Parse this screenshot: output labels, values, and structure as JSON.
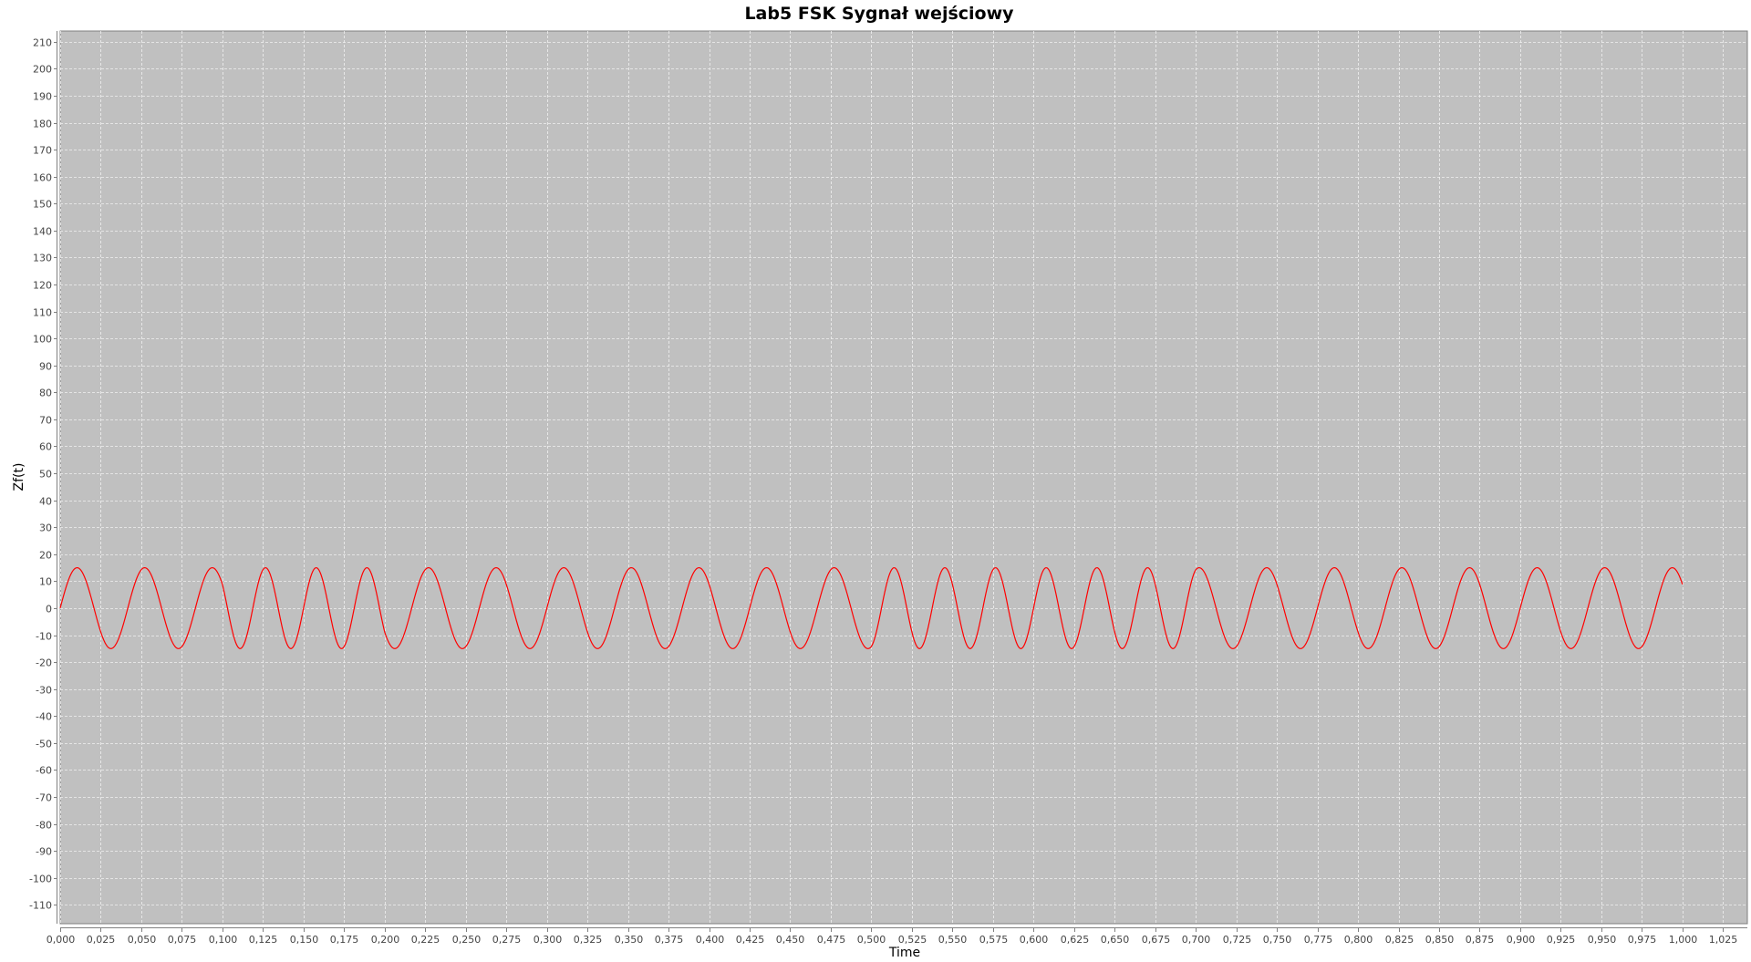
{
  "chart_data": {
    "type": "line",
    "title": "Lab5 FSK Sygnał wejściowy",
    "xlabel": "Time",
    "ylabel": "Zf(t)",
    "xlim": [
      0,
      1.04
    ],
    "ylim": [
      -117,
      214
    ],
    "xticks": [
      "0,000",
      "0,025",
      "0,050",
      "0,075",
      "0,100",
      "0,125",
      "0,150",
      "0,175",
      "0,200",
      "0,225",
      "0,250",
      "0,275",
      "0,300",
      "0,325",
      "0,350",
      "0,375",
      "0,400",
      "0,425",
      "0,450",
      "0,475",
      "0,500",
      "0,525",
      "0,550",
      "0,575",
      "0,600",
      "0,625",
      "0,650",
      "0,675",
      "0,700",
      "0,725",
      "0,750",
      "0,775",
      "0,800",
      "0,825",
      "0,850",
      "0,875",
      "0,900",
      "0,925",
      "0,950",
      "0,975",
      "1,000",
      "1,025"
    ],
    "yticks": [
      "210",
      "200",
      "190",
      "180",
      "170",
      "160",
      "150",
      "140",
      "130",
      "120",
      "110",
      "100",
      "90",
      "80",
      "70",
      "60",
      "50",
      "40",
      "30",
      "20",
      "10",
      "0",
      "-10",
      "-20",
      "-30",
      "-40",
      "-50",
      "-60",
      "-70",
      "-80",
      "-90",
      "-100",
      "-110"
    ],
    "grid": true,
    "colors": {
      "plot_background": "#c0c0c0",
      "gridline": "#f0f0f0",
      "series": "#ff0000",
      "axis": "#808080"
    },
    "series": [
      {
        "amplitude": 15,
        "segments": [
          {
            "x_start": 0.0,
            "x_end": 0.1,
            "frequency_hz": 24
          },
          {
            "x_start": 0.1,
            "x_end": 0.2,
            "frequency_hz": 32
          },
          {
            "x_start": 0.2,
            "x_end": 0.3,
            "frequency_hz": 24
          },
          {
            "x_start": 0.3,
            "x_end": 0.4,
            "frequency_hz": 24
          },
          {
            "x_start": 0.4,
            "x_end": 0.5,
            "frequency_hz": 24
          },
          {
            "x_start": 0.5,
            "x_end": 0.6,
            "frequency_hz": 32
          },
          {
            "x_start": 0.6,
            "x_end": 0.7,
            "frequency_hz": 32
          },
          {
            "x_start": 0.7,
            "x_end": 0.8,
            "frequency_hz": 24
          },
          {
            "x_start": 0.8,
            "x_end": 0.9,
            "frequency_hz": 24
          },
          {
            "x_start": 0.9,
            "x_end": 1.0,
            "frequency_hz": 24
          }
        ]
      }
    ]
  }
}
